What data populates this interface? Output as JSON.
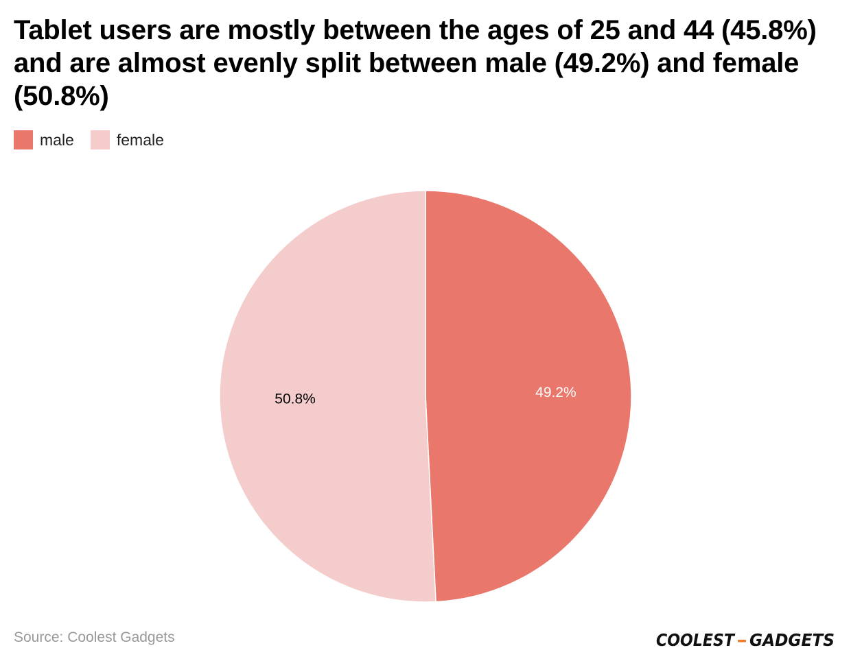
{
  "title": "Tablet users are mostly between the ages of 25 and 44 (45.8%) and are almost evenly split between male (49.2%) and female (50.8%)",
  "source": "Source: Coolest Gadgets",
  "logo": {
    "text_left": "COOLEST",
    "separator": "-",
    "text_right": "GADGETS",
    "text_color": "#111111",
    "accent_color": "#ee7c2f"
  },
  "chart_data": {
    "type": "pie",
    "categories": [
      "male",
      "female"
    ],
    "values": [
      49.2,
      50.8
    ],
    "labels": [
      "49.2%",
      "50.8%"
    ],
    "colors": [
      "#e9776b",
      "#f3cccb"
    ],
    "label_colors": [
      "#ffffff",
      "#000000"
    ],
    "legend": [
      {
        "label": "male",
        "color": "#e9776b"
      },
      {
        "label": "female",
        "color": "#f3cccb"
      }
    ],
    "legend_position": "top-left",
    "start_angle": "12 o'clock",
    "direction": "clockwise"
  }
}
